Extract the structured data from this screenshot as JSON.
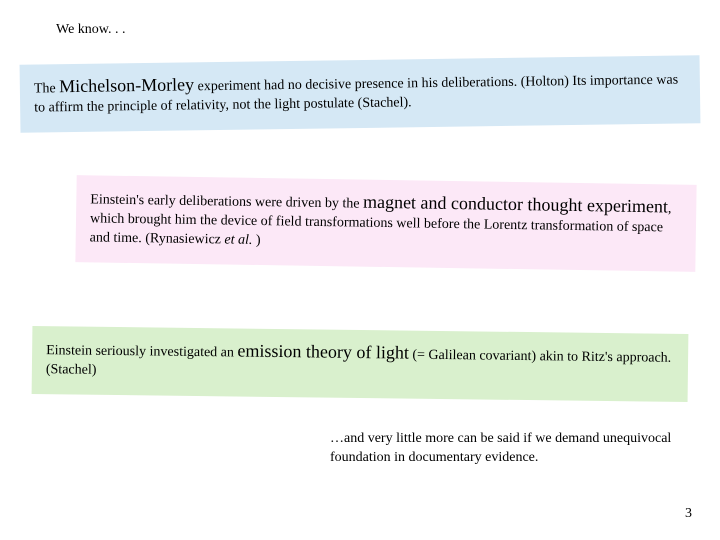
{
  "header": {
    "text": "We know. . ."
  },
  "box1": {
    "bg": "#d5e8f5",
    "rotate_deg": -0.8,
    "pre1": "The ",
    "em1": "Michelson-Morley",
    "post1": " experiment had no decisive presence in his deliberations. (Holton) Its importance was to affirm the principle of relativity, not the light postulate (Stachel)."
  },
  "box2": {
    "bg": "#fce8f7",
    "rotate_deg": 0.9,
    "pre1": "Einstein's early deliberations were driven by the ",
    "em1": "magnet and conductor thought experiment",
    "post1": ", which brought him the device of field transformations well before the Lorentz transformation of space and time. (Rynasiewicz ",
    "ital1": "et al.",
    "post2": " )"
  },
  "box3": {
    "bg": "#d9f0cd",
    "rotate_deg": 0.7,
    "pre1": "Einstein seriously investigated an ",
    "em1": "emission theory of light",
    "post1": " (= Galilean covariant) akin to Ritz's approach. (Stachel)"
  },
  "footer": {
    "text": "…and very little more can be said if we demand unequivocal foundation in documentary evidence."
  },
  "pagenum": "3",
  "fonts": {
    "body_pt": 14,
    "emph_pt": 18,
    "family": "Georgia, Times New Roman, serif"
  }
}
